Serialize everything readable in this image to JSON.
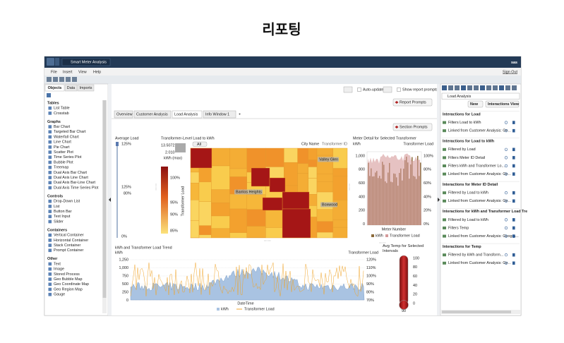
{
  "title": "리포팅",
  "app": {
    "tab": "Smart Meter Analysis",
    "logo": "sas",
    "menu": [
      "File",
      "Insert",
      "View",
      "Help"
    ],
    "sign_out": "Sign Out"
  },
  "left_panel": {
    "tabs": [
      "Objects",
      "Data",
      "Imports"
    ],
    "groups": [
      {
        "title": "Tables",
        "items": [
          "List Table",
          "Crosstab"
        ]
      },
      {
        "title": "Graphs",
        "items": [
          "Bar Chart",
          "Targeted Bar Chart",
          "Waterfall Chart",
          "Line Chart",
          "Pie Chart",
          "Scatter Plot",
          "Time Series Plot",
          "Bubble Plot",
          "Treemap",
          "Dual Axis Bar Chart",
          "Dual Axis Line Chart",
          "Dual Axis Bar-Line Chart",
          "Dual Axis Time Series Plot"
        ]
      },
      {
        "title": "Controls",
        "items": [
          "Drop-Down List",
          "List",
          "Button Bar",
          "Text Input",
          "Slider"
        ]
      },
      {
        "title": "Containers",
        "items": [
          "Vertical Container",
          "Horizontal Container",
          "Stack Container",
          "Prompt Container"
        ]
      },
      {
        "title": "Other",
        "items": [
          "Text",
          "Image",
          "Stored Process",
          "Geo Bubble Map",
          "Geo Coordinate Map",
          "Geo Region Map",
          "Gauge"
        ]
      }
    ]
  },
  "report": {
    "auto_update": "Auto-update",
    "show_prompts": "Show report prompts",
    "report_prompts": "Report Prompts",
    "section_prompts": "Section Prompts",
    "tabs": [
      "Overview",
      "Customer Analysis",
      "Load Analysis",
      "Info Window 1"
    ],
    "add_tab": "+"
  },
  "average_load": {
    "title": "Average Load",
    "ticks": [
      "125%",
      "125%",
      "80%",
      "0%"
    ]
  },
  "treemap": {
    "title": "Transformer-Level Load to kWh",
    "button": "All",
    "size_max": "13.5072",
    "size_min": "2.010",
    "size_label": "kWh (max)",
    "color_ticks": [
      "100%",
      "95%",
      "90%",
      "85%"
    ],
    "color_label": "Transformer Load",
    "levels": [
      "City Name",
      "Transformer ID"
    ],
    "cell_labels": [
      "Valley Glen",
      "Barrios Heights",
      "Boxwood"
    ]
  },
  "meter_detail": {
    "title": "Meter Detail for Selected Transformer",
    "y_label": "kWh",
    "y2_label": "Transformer Load",
    "yticks": [
      "1,000",
      "800",
      "600",
      "400",
      "200",
      "0"
    ],
    "y2ticks": [
      "100%",
      "80%",
      "60%",
      "40%",
      "20%",
      "0%"
    ],
    "x_label": "Meter Number",
    "legend": [
      "kWh",
      "Transformer Load"
    ]
  },
  "trend": {
    "title": "kWh and Transformer Load Trend",
    "y_label": "kWh",
    "y2_label": "Transformer Load",
    "yticks": [
      "1,250",
      "1,000",
      "750",
      "500",
      "250",
      "0"
    ],
    "y2ticks": [
      "120%",
      "110%",
      "100%",
      "90%",
      "80%",
      "70%"
    ],
    "x_label": "DateTime",
    "legend": [
      "kWh",
      "Transformer Load"
    ]
  },
  "temp": {
    "title": "Avg Temp for Selected Intervals",
    "ticks": [
      "100",
      "80",
      "60",
      "40",
      "20",
      "0"
    ],
    "value": "90"
  },
  "right_panel": {
    "dropdown": "Load Analysis",
    "buttons": [
      "New",
      "Interactions View"
    ],
    "sections": [
      {
        "title": "Interactions for Load",
        "items": [
          "Filters Load to kWh",
          "Linked from Customer Analysis: Ge..."
        ]
      },
      {
        "title": "Interactions for Load to kWh",
        "items": [
          "Filtered by Load",
          "Filters Meter ID Detail",
          "Filters kWh and Transformer Lo...",
          "Linked from Customer Analysis: Ge..."
        ]
      },
      {
        "title": "Interactions for Meter ID Detail",
        "items": [
          "Filtered by Load to kWh",
          "Linked from Customer Analysis: Ge..."
        ]
      },
      {
        "title": "Interactions for kWh and Transformer Load Tre",
        "items": [
          "Filtered by Load to kWh",
          "Filters Temp",
          "Linked from Customer Analysis: Geogra..."
        ]
      },
      {
        "title": "Interactions for Temp",
        "items": [
          "Filtered by kWh and Transform...",
          "Linked from Customer Analysis: Ge..."
        ]
      }
    ]
  }
}
